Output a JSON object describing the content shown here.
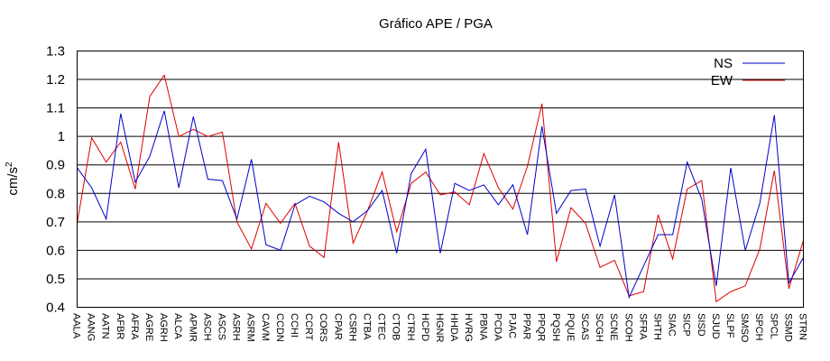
{
  "chart_data": {
    "type": "line",
    "title": "Gráfico  APE / PGA",
    "ylabel": "cm/s",
    "ylabel_sup": "2",
    "xlabel": "",
    "ylim": [
      0.4,
      1.3
    ],
    "yticks": [
      "0.4",
      "0.5",
      "0.6",
      "0.7",
      "0.8",
      "0.9",
      "1",
      "1.1",
      "1.2",
      "1.3"
    ],
    "grid": "horizontal",
    "legend_position": "top-right",
    "categories": [
      "AALA",
      "AANG",
      "AATN",
      "AFBR",
      "AFRA",
      "AGRE",
      "AGRH",
      "ALCA",
      "APMR",
      "ASCH",
      "ASCS",
      "ASRH",
      "ASRM",
      "CAVM",
      "CCDN",
      "CCHI",
      "CCRT",
      "CORS",
      "CPAR",
      "CSRH",
      "CTBA",
      "CTEC",
      "CTOB",
      "CTRH",
      "HCPD",
      "HGNR",
      "HHDA",
      "HVRG",
      "PBNA",
      "PCDA",
      "PJAC",
      "PPAR",
      "PPQR",
      "PQSH",
      "PQUE",
      "SCAS",
      "SCGH",
      "SCNE",
      "SCOH",
      "SFRA",
      "SHTH",
      "SIAC",
      "SICP",
      "SISD",
      "SJUD",
      "SLPF",
      "SMSO",
      "SPCH",
      "SPCL",
      "SSMD",
      "STRN"
    ],
    "series": [
      {
        "name": "NS",
        "color": "#0000cc",
        "values": [
          0.89,
          0.82,
          0.71,
          1.08,
          0.84,
          0.93,
          1.09,
          0.82,
          1.07,
          0.85,
          0.845,
          0.71,
          0.92,
          0.62,
          0.6,
          0.76,
          0.79,
          0.77,
          0.73,
          0.7,
          0.74,
          0.81,
          0.59,
          0.87,
          0.955,
          0.59,
          0.835,
          0.81,
          0.83,
          0.76,
          0.83,
          0.655,
          1.035,
          0.73,
          0.81,
          0.815,
          0.615,
          0.795,
          0.435,
          0.545,
          0.655,
          0.655,
          0.91,
          0.78,
          0.475,
          0.89,
          0.6,
          0.765,
          1.075,
          0.485,
          0.575
        ]
      },
      {
        "name": "EW",
        "color": "#dd0000",
        "values": [
          0.695,
          0.995,
          0.91,
          0.98,
          0.815,
          1.14,
          1.215,
          1.0,
          1.025,
          1.0,
          1.015,
          0.7,
          0.605,
          0.765,
          0.695,
          0.765,
          0.615,
          0.575,
          0.98,
          0.625,
          0.74,
          0.875,
          0.665,
          0.835,
          0.875,
          0.795,
          0.805,
          0.76,
          0.94,
          0.82,
          0.745,
          0.895,
          1.115,
          0.56,
          0.75,
          0.695,
          0.54,
          0.565,
          0.44,
          0.455,
          0.725,
          0.57,
          0.815,
          0.845,
          0.42,
          0.455,
          0.475,
          0.605,
          0.88,
          0.465,
          0.635
        ]
      }
    ]
  }
}
